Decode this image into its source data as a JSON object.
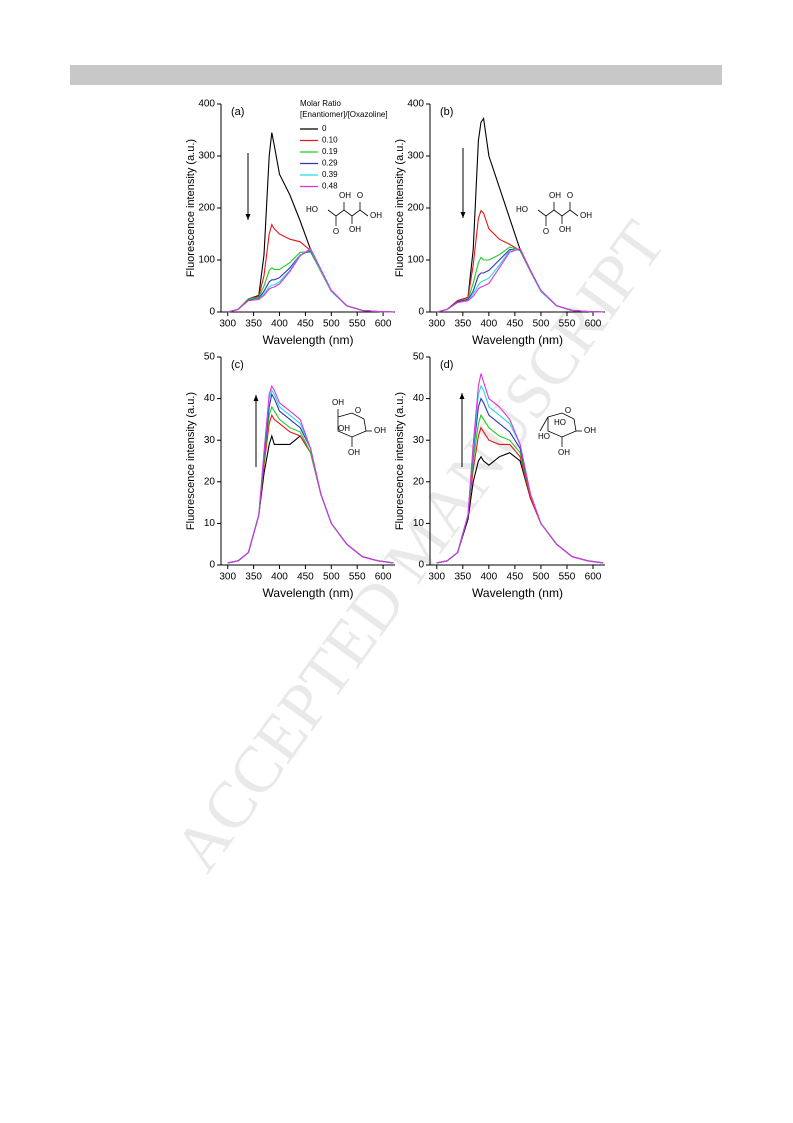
{
  "watermark": "ACCEPTED MANUSCRIPT",
  "chart_data": [
    {
      "type": "line",
      "panel_label": "(a)",
      "xlabel": "Wavelength (nm)",
      "ylabel": "Fluorescence intensity (a.u.)",
      "legend_title": [
        "Molar Ratio",
        "[Enantiomer]/[Oxazoline]"
      ],
      "legend": "upper right",
      "structure_labels": [
        "HO",
        "OH",
        "O",
        "OH",
        "O",
        "OH"
      ],
      "x": [
        300,
        320,
        340,
        360,
        370,
        380,
        385,
        390,
        400,
        420,
        440,
        460,
        480,
        500,
        530,
        560,
        590,
        620
      ],
      "xlim": [
        287,
        623
      ],
      "xticks": [
        300,
        350,
        400,
        450,
        500,
        550,
        600
      ],
      "ylim": [
        0,
        400
      ],
      "yticks": [
        0,
        100,
        200,
        300,
        400
      ],
      "series": [
        {
          "name": "0",
          "color": "#000000",
          "values": [
            0,
            5,
            25,
            32,
            110,
            300,
            345,
            320,
            265,
            225,
            175,
            120,
            78,
            40,
            12,
            3,
            1,
            0
          ]
        },
        {
          "name": "0.10",
          "color": "#e41a1a",
          "values": [
            0,
            5,
            25,
            30,
            70,
            150,
            168,
            160,
            150,
            140,
            135,
            118,
            78,
            40,
            12,
            3,
            1,
            0
          ]
        },
        {
          "name": "0.19",
          "color": "#22cc22",
          "values": [
            0,
            5,
            25,
            28,
            50,
            80,
            85,
            82,
            82,
            95,
            115,
            115,
            78,
            40,
            12,
            3,
            1,
            0
          ]
        },
        {
          "name": "0.29",
          "color": "#3333bb",
          "values": [
            0,
            5,
            23,
            26,
            40,
            58,
            62,
            62,
            66,
            85,
            110,
            118,
            80,
            40,
            12,
            3,
            1,
            0
          ]
        },
        {
          "name": "0.39",
          "color": "#22dddd",
          "values": [
            0,
            5,
            22,
            25,
            35,
            48,
            52,
            52,
            58,
            80,
            110,
            120,
            80,
            40,
            12,
            3,
            1,
            0
          ]
        },
        {
          "name": "0.48",
          "color": "#dd33dd",
          "values": [
            0,
            5,
            22,
            24,
            32,
            44,
            47,
            48,
            54,
            78,
            108,
            122,
            82,
            42,
            12,
            3,
            1,
            0
          ]
        }
      ]
    },
    {
      "type": "line",
      "panel_label": "(b)",
      "xlabel": "Wavelength (nm)",
      "ylabel": "Fluorescence intensity (a.u.)",
      "structure_labels": [
        "HO",
        "OH",
        "O",
        "OH",
        "O",
        "OH"
      ],
      "x": [
        300,
        320,
        340,
        360,
        370,
        380,
        385,
        390,
        400,
        420,
        440,
        460,
        480,
        500,
        530,
        560,
        590,
        620
      ],
      "xlim": [
        287,
        623
      ],
      "xticks": [
        300,
        350,
        400,
        450,
        500,
        550,
        600
      ],
      "ylim": [
        0,
        400
      ],
      "yticks": [
        0,
        100,
        200,
        300,
        400
      ],
      "series": [
        {
          "color": "#000000",
          "values": [
            0,
            5,
            22,
            28,
            120,
            330,
            365,
            372,
            300,
            240,
            180,
            120,
            78,
            40,
            12,
            3,
            1,
            0
          ]
        },
        {
          "color": "#e41a1a",
          "values": [
            0,
            5,
            22,
            28,
            90,
            180,
            195,
            190,
            160,
            140,
            130,
            118,
            78,
            40,
            12,
            3,
            1,
            0
          ]
        },
        {
          "color": "#22cc22",
          "values": [
            0,
            5,
            20,
            25,
            55,
            95,
            105,
            100,
            100,
            110,
            125,
            118,
            78,
            40,
            12,
            3,
            1,
            0
          ]
        },
        {
          "color": "#3333bb",
          "values": [
            0,
            5,
            20,
            24,
            40,
            70,
            75,
            75,
            80,
            100,
            120,
            120,
            80,
            40,
            12,
            3,
            1,
            0
          ]
        },
        {
          "color": "#22dddd",
          "values": [
            0,
            5,
            18,
            22,
            35,
            52,
            58,
            60,
            65,
            90,
            118,
            122,
            80,
            40,
            12,
            3,
            1,
            0
          ]
        },
        {
          "color": "#dd33dd",
          "values": [
            0,
            5,
            18,
            22,
            30,
            45,
            48,
            50,
            55,
            85,
            115,
            122,
            80,
            42,
            12,
            3,
            1,
            0
          ]
        }
      ]
    },
    {
      "type": "line",
      "panel_label": "(c)",
      "xlabel": "Wavelength (nm)",
      "ylabel": "Fluorescence intensity (a.u.)",
      "structure_labels": [
        "OH",
        "O",
        "OH",
        "OH",
        "OH"
      ],
      "x": [
        300,
        320,
        340,
        360,
        370,
        380,
        385,
        390,
        400,
        420,
        440,
        460,
        480,
        500,
        530,
        560,
        590,
        620
      ],
      "xlim": [
        287,
        623
      ],
      "xticks": [
        300,
        350,
        400,
        450,
        500,
        550,
        600
      ],
      "ylim": [
        0,
        50
      ],
      "yticks": [
        0,
        10,
        20,
        30,
        40,
        50
      ],
      "series": [
        {
          "color": "#000000",
          "values": [
            0.5,
            1,
            3,
            12,
            22,
            29,
            31,
            29,
            29,
            29,
            31,
            27,
            17,
            10,
            5,
            2,
            1,
            0.5
          ]
        },
        {
          "color": "#e41a1a",
          "values": [
            0.5,
            1,
            3,
            12,
            24,
            34,
            36,
            35,
            34,
            32,
            31,
            27,
            17,
            10,
            5,
            2,
            1,
            0.5
          ]
        },
        {
          "color": "#22cc22",
          "values": [
            0.5,
            1,
            3,
            12,
            25,
            36,
            38,
            37,
            35,
            33,
            32,
            27,
            17,
            10,
            5,
            2,
            1,
            0.5
          ]
        },
        {
          "color": "#3333bb",
          "values": [
            0.5,
            1,
            3,
            12,
            26,
            38,
            41,
            40,
            37,
            35,
            33,
            28,
            17,
            10,
            5,
            2,
            1,
            0.5
          ]
        },
        {
          "color": "#22dddd",
          "values": [
            0.5,
            1,
            3,
            12,
            27,
            40,
            42,
            41,
            38,
            36,
            34,
            28,
            17,
            10,
            5,
            2,
            1,
            0.5
          ]
        },
        {
          "color": "#dd33dd",
          "values": [
            0.5,
            1,
            3,
            12,
            27,
            41,
            43,
            42,
            39,
            37,
            35,
            28,
            17,
            10,
            5,
            2,
            1,
            0.5
          ]
        }
      ]
    },
    {
      "type": "line",
      "panel_label": "(d)",
      "xlabel": "Wavelength (nm)",
      "ylabel": "Fluorescence intensity (a.u.)",
      "structure_labels": [
        "O",
        "HO",
        "OH",
        "HO",
        "OH"
      ],
      "x": [
        300,
        320,
        340,
        360,
        370,
        380,
        385,
        390,
        400,
        420,
        440,
        460,
        480,
        500,
        530,
        560,
        590,
        620
      ],
      "xlim": [
        287,
        623
      ],
      "xticks": [
        300,
        350,
        400,
        450,
        500,
        550,
        600
      ],
      "ylim": [
        0,
        50
      ],
      "yticks": [
        0,
        10,
        20,
        30,
        40,
        50
      ],
      "series": [
        {
          "color": "#000000",
          "values": [
            0.5,
            1,
            3,
            11,
            20,
            25,
            26,
            25,
            24,
            26,
            27,
            25,
            16,
            10,
            5,
            2,
            1,
            0.5
          ]
        },
        {
          "color": "#e41a1a",
          "values": [
            0.5,
            1,
            3,
            12,
            23,
            31,
            33,
            32,
            30,
            29,
            29,
            26,
            16,
            10,
            5,
            2,
            1,
            0.5
          ]
        },
        {
          "color": "#22cc22",
          "values": [
            0.5,
            1,
            3,
            12,
            25,
            34,
            36,
            35,
            33,
            31,
            30,
            27,
            17,
            10,
            5,
            2,
            1,
            0.5
          ]
        },
        {
          "color": "#3333bb",
          "values": [
            0.5,
            1,
            3,
            12,
            27,
            38,
            40,
            39,
            36,
            34,
            32,
            28,
            17,
            10,
            5,
            2,
            1,
            0.5
          ]
        },
        {
          "color": "#22dddd",
          "values": [
            0.5,
            1,
            3,
            12,
            28,
            41,
            43,
            42,
            38,
            36,
            34,
            29,
            17,
            10,
            5,
            2,
            1,
            0.5
          ]
        },
        {
          "color": "#dd33dd",
          "values": [
            0.5,
            1,
            3,
            12,
            29,
            43,
            46,
            44,
            40,
            38,
            35,
            29,
            17,
            10,
            5,
            2,
            1,
            0.5
          ]
        }
      ]
    }
  ]
}
